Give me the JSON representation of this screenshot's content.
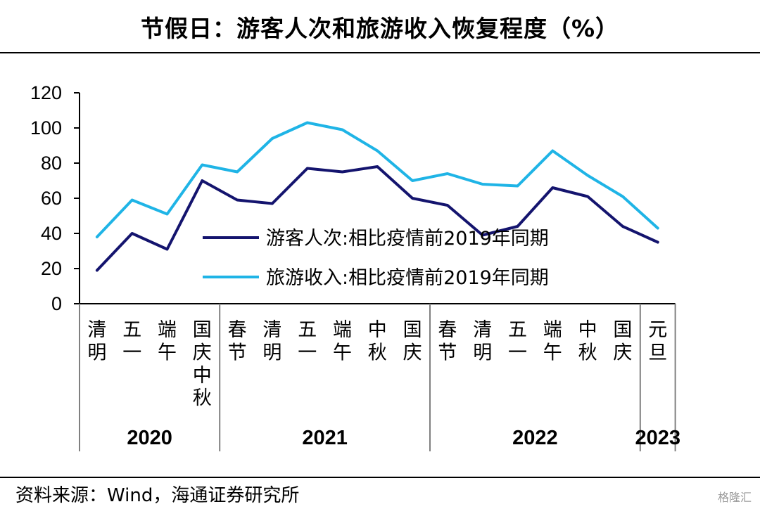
{
  "title": "节假日：游客人次和旅游收入恢复程度（%）",
  "source": "资料来源：Wind，海通证券研究所",
  "watermark": "格隆汇",
  "chart_data": {
    "type": "line",
    "ylim": [
      0,
      120
    ],
    "yticks": [
      "0",
      "20",
      "40",
      "60",
      "80",
      "100",
      "120"
    ],
    "categories": [
      {
        "label": "清明",
        "year": "2020"
      },
      {
        "label": "五一",
        "year": "2020"
      },
      {
        "label": "端午",
        "year": "2020"
      },
      {
        "label": "国庆中秋",
        "year": "2020"
      },
      {
        "label": "春节",
        "year": "2021"
      },
      {
        "label": "清明",
        "year": "2021"
      },
      {
        "label": "五一",
        "year": "2021"
      },
      {
        "label": "端午",
        "year": "2021"
      },
      {
        "label": "中秋",
        "year": "2021"
      },
      {
        "label": "国庆",
        "year": "2021"
      },
      {
        "label": "春节",
        "year": "2022"
      },
      {
        "label": "清明",
        "year": "2022"
      },
      {
        "label": "五一",
        "year": "2022"
      },
      {
        "label": "端午",
        "year": "2022"
      },
      {
        "label": "中秋",
        "year": "2022"
      },
      {
        "label": "国庆",
        "year": "2022"
      },
      {
        "label": "元旦",
        "year": "2023"
      }
    ],
    "years": [
      "2020",
      "2021",
      "2022",
      "2023"
    ],
    "series": [
      {
        "name": "游客人次:相比疫情前2019年同期",
        "color": "#14146e",
        "values": [
          19,
          40,
          31,
          70,
          59,
          57,
          77,
          75,
          78,
          60,
          56,
          39,
          44,
          66,
          61,
          44,
          35
        ]
      },
      {
        "name": "旅游收入:相比疫情前2019年同期",
        "color": "#1fb4e6",
        "values": [
          38,
          59,
          51,
          79,
          75,
          94,
          103,
          99,
          87,
          70,
          74,
          68,
          67,
          87,
          73,
          61,
          43
        ]
      }
    ],
    "legend_position": "center"
  }
}
